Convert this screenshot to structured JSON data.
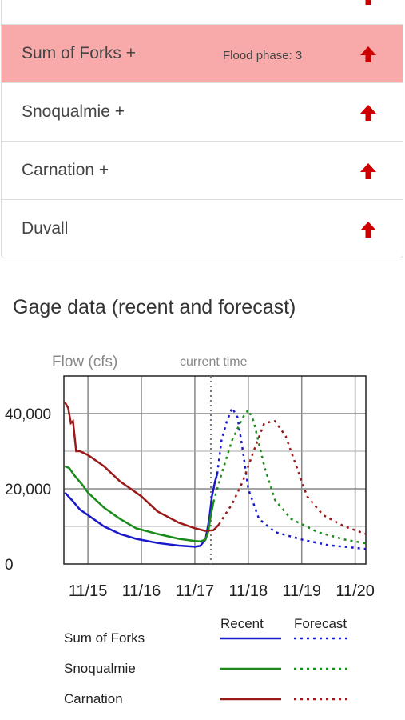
{
  "gages": [
    {
      "name": "",
      "phase": "",
      "flood": false,
      "arrow_icon": "up-arrow-icon"
    },
    {
      "name": "Sum of Forks +",
      "phase": "Flood phase: 3",
      "flood": true,
      "arrow_icon": "up-arrow-icon"
    },
    {
      "name": "Snoqualmie +",
      "phase": "",
      "flood": false,
      "arrow_icon": "up-arrow-icon"
    },
    {
      "name": "Carnation +",
      "phase": "",
      "flood": false,
      "arrow_icon": "up-arrow-icon"
    },
    {
      "name": "Duvall",
      "phase": "",
      "flood": false,
      "arrow_icon": "up-arrow-icon"
    }
  ],
  "colors": {
    "flood_row": "#f8a9a9",
    "arrow": "#cc0000",
    "sum_of_forks": "#1a1acc",
    "snoqualmie": "#1a8a1a",
    "carnation": "#9a1a1a"
  },
  "section_title": "Gage data (recent and forecast)",
  "chart_data": {
    "type": "line",
    "ylabel": "Flow (cfs)",
    "current_time_label": "current time",
    "current_time_x": 17.3,
    "ylim": [
      0,
      50000
    ],
    "xlim": [
      14.55,
      20.2
    ],
    "y_ticks": [
      {
        "value": 0,
        "label": "0"
      },
      {
        "value": 20000,
        "label": "20,000"
      },
      {
        "value": 40000,
        "label": "40,000"
      }
    ],
    "x_ticks": [
      {
        "value": 15,
        "label": "11/15"
      },
      {
        "value": 16,
        "label": "11/16"
      },
      {
        "value": 17,
        "label": "11/17"
      },
      {
        "value": 18,
        "label": "11/18"
      },
      {
        "value": 19,
        "label": "11/19"
      },
      {
        "value": 20,
        "label": "11/20"
      }
    ],
    "grid": true,
    "legend_headers": {
      "recent": "Recent",
      "forecast": "Forecast"
    },
    "series": [
      {
        "name": "Sum of Forks",
        "color": "#1a1acc",
        "recent": [
          [
            14.57,
            19000
          ],
          [
            14.7,
            17000
          ],
          [
            14.85,
            14500
          ],
          [
            15.0,
            13000
          ],
          [
            15.3,
            10000
          ],
          [
            15.6,
            8000
          ],
          [
            15.9,
            6700
          ],
          [
            16.3,
            5600
          ],
          [
            16.7,
            4900
          ],
          [
            17.0,
            4600
          ],
          [
            17.1,
            4800
          ],
          [
            17.2,
            6500
          ],
          [
            17.27,
            12000
          ],
          [
            17.32,
            18000
          ],
          [
            17.38,
            22000
          ],
          [
            17.42,
            24000
          ]
        ],
        "forecast": [
          [
            17.42,
            24000
          ],
          [
            17.5,
            33000
          ],
          [
            17.6,
            38000
          ],
          [
            17.7,
            41500
          ],
          [
            17.8,
            39000
          ],
          [
            17.9,
            30000
          ],
          [
            18.0,
            20000
          ],
          [
            18.2,
            12000
          ],
          [
            18.5,
            8500
          ],
          [
            19.0,
            6500
          ],
          [
            19.5,
            5000
          ],
          [
            20.2,
            4000
          ]
        ]
      },
      {
        "name": "Snoqualmie",
        "color": "#1a8a1a",
        "recent": [
          [
            14.57,
            26000
          ],
          [
            14.65,
            25500
          ],
          [
            14.75,
            23500
          ],
          [
            14.9,
            21000
          ],
          [
            15.0,
            19000
          ],
          [
            15.3,
            15000
          ],
          [
            15.6,
            12000
          ],
          [
            15.9,
            9500
          ],
          [
            16.3,
            8000
          ],
          [
            16.7,
            6700
          ],
          [
            17.0,
            6100
          ],
          [
            17.1,
            6000
          ],
          [
            17.2,
            6500
          ],
          [
            17.25,
            8500
          ],
          [
            17.3,
            13000
          ],
          [
            17.35,
            16500
          ]
        ],
        "forecast": [
          [
            17.35,
            16500
          ],
          [
            17.5,
            24000
          ],
          [
            17.7,
            33000
          ],
          [
            17.9,
            39000
          ],
          [
            18.0,
            41000
          ],
          [
            18.1,
            38000
          ],
          [
            18.3,
            26000
          ],
          [
            18.5,
            17000
          ],
          [
            18.8,
            12000
          ],
          [
            19.3,
            8500
          ],
          [
            19.8,
            6500
          ],
          [
            20.2,
            5500
          ]
        ]
      },
      {
        "name": "Carnation",
        "color": "#9a1a1a",
        "recent": [
          [
            14.57,
            43000
          ],
          [
            14.63,
            41500
          ],
          [
            14.68,
            37500
          ],
          [
            14.72,
            38000
          ],
          [
            14.78,
            30000
          ],
          [
            14.85,
            30000
          ],
          [
            15.0,
            29000
          ],
          [
            15.3,
            26000
          ],
          [
            15.6,
            22000
          ],
          [
            16.0,
            18000
          ],
          [
            16.3,
            14000
          ],
          [
            16.7,
            11000
          ],
          [
            17.0,
            9500
          ],
          [
            17.2,
            8800
          ],
          [
            17.35,
            9000
          ],
          [
            17.45,
            10500
          ]
        ],
        "forecast": [
          [
            17.45,
            10500
          ],
          [
            17.7,
            16000
          ],
          [
            17.9,
            22000
          ],
          [
            18.1,
            30000
          ],
          [
            18.3,
            37500
          ],
          [
            18.5,
            38000
          ],
          [
            18.7,
            34000
          ],
          [
            18.9,
            26000
          ],
          [
            19.1,
            18000
          ],
          [
            19.4,
            13000
          ],
          [
            19.8,
            10000
          ],
          [
            20.2,
            8000
          ]
        ]
      }
    ]
  }
}
